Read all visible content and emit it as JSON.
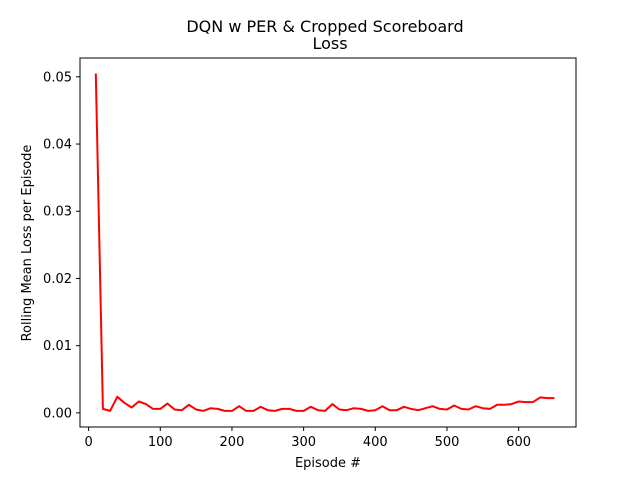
{
  "chart_data": {
    "type": "line",
    "title": "DQN w PER & Cropped Scoreboard",
    "subtitle": "Loss",
    "xlabel": "Episode #",
    "ylabel": "Rolling Mean Loss per Episode",
    "xlim": [
      -12,
      680
    ],
    "ylim": [
      -0.0021,
      0.0528
    ],
    "xticks": [
      0,
      100,
      200,
      300,
      400,
      500,
      600
    ],
    "yticks": [
      0.0,
      0.01,
      0.02,
      0.03,
      0.04,
      0.05
    ],
    "ytick_labels": [
      "0.00",
      "0.01",
      "0.02",
      "0.03",
      "0.04",
      "0.05"
    ],
    "grid": false,
    "line_color": "#ff0000",
    "series": [
      {
        "x": [
          10,
          20,
          30,
          40,
          50,
          60,
          70,
          80,
          90,
          100,
          110,
          120,
          130,
          140,
          150,
          160,
          170,
          180,
          190,
          200,
          210,
          220,
          230,
          240,
          250,
          260,
          270,
          280,
          290,
          300,
          310,
          320,
          330,
          340,
          350,
          360,
          370,
          380,
          390,
          400,
          410,
          420,
          430,
          440,
          450,
          460,
          470,
          480,
          490,
          500,
          510,
          520,
          530,
          540,
          550,
          560,
          570,
          580,
          590,
          600,
          610,
          620,
          630,
          640,
          650
        ],
        "values": [
          0.0505,
          0.0006,
          0.0003,
          0.0024,
          0.0015,
          0.0008,
          0.0017,
          0.0013,
          0.0006,
          0.0006,
          0.0014,
          0.0005,
          0.0004,
          0.0012,
          0.0005,
          0.0003,
          0.0007,
          0.0006,
          0.0003,
          0.0003,
          0.001,
          0.0003,
          0.0003,
          0.0009,
          0.0004,
          0.0003,
          0.0006,
          0.0006,
          0.0003,
          0.0003,
          0.0009,
          0.0004,
          0.0003,
          0.0013,
          0.0005,
          0.0004,
          0.0007,
          0.0006,
          0.0003,
          0.0004,
          0.001,
          0.0004,
          0.0004,
          0.0009,
          0.0006,
          0.0004,
          0.0007,
          0.001,
          0.0006,
          0.0005,
          0.0011,
          0.0006,
          0.0005,
          0.001,
          0.0007,
          0.0006,
          0.0012,
          0.0012,
          0.0013,
          0.0017,
          0.0016,
          0.0016,
          0.0023,
          0.0022,
          0.0022
        ]
      }
    ]
  }
}
